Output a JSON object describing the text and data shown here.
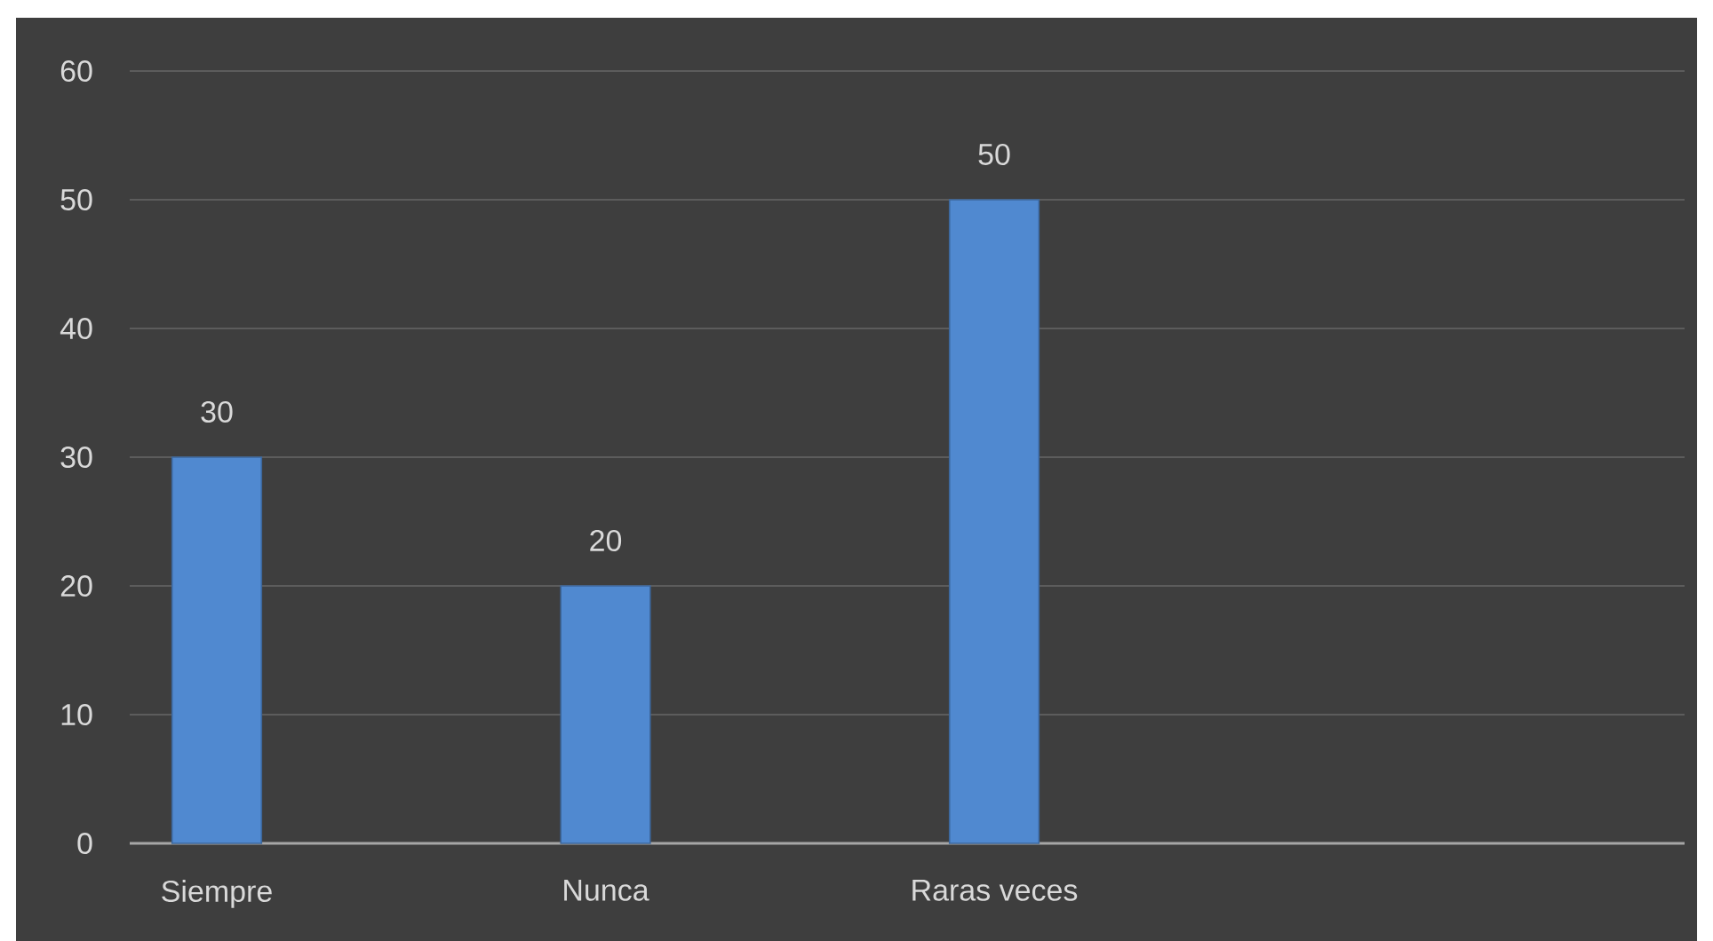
{
  "chart_data": {
    "type": "bar",
    "categories": [
      "Siempre",
      "Nunca",
      "Raras veces",
      null
    ],
    "values": [
      30,
      20,
      50,
      null
    ],
    "color": "#5089d0",
    "ylim": [
      0,
      60
    ],
    "yticks": [
      0,
      10,
      20,
      30,
      40,
      50,
      60
    ],
    "grid": "y",
    "data_labels": true
  }
}
